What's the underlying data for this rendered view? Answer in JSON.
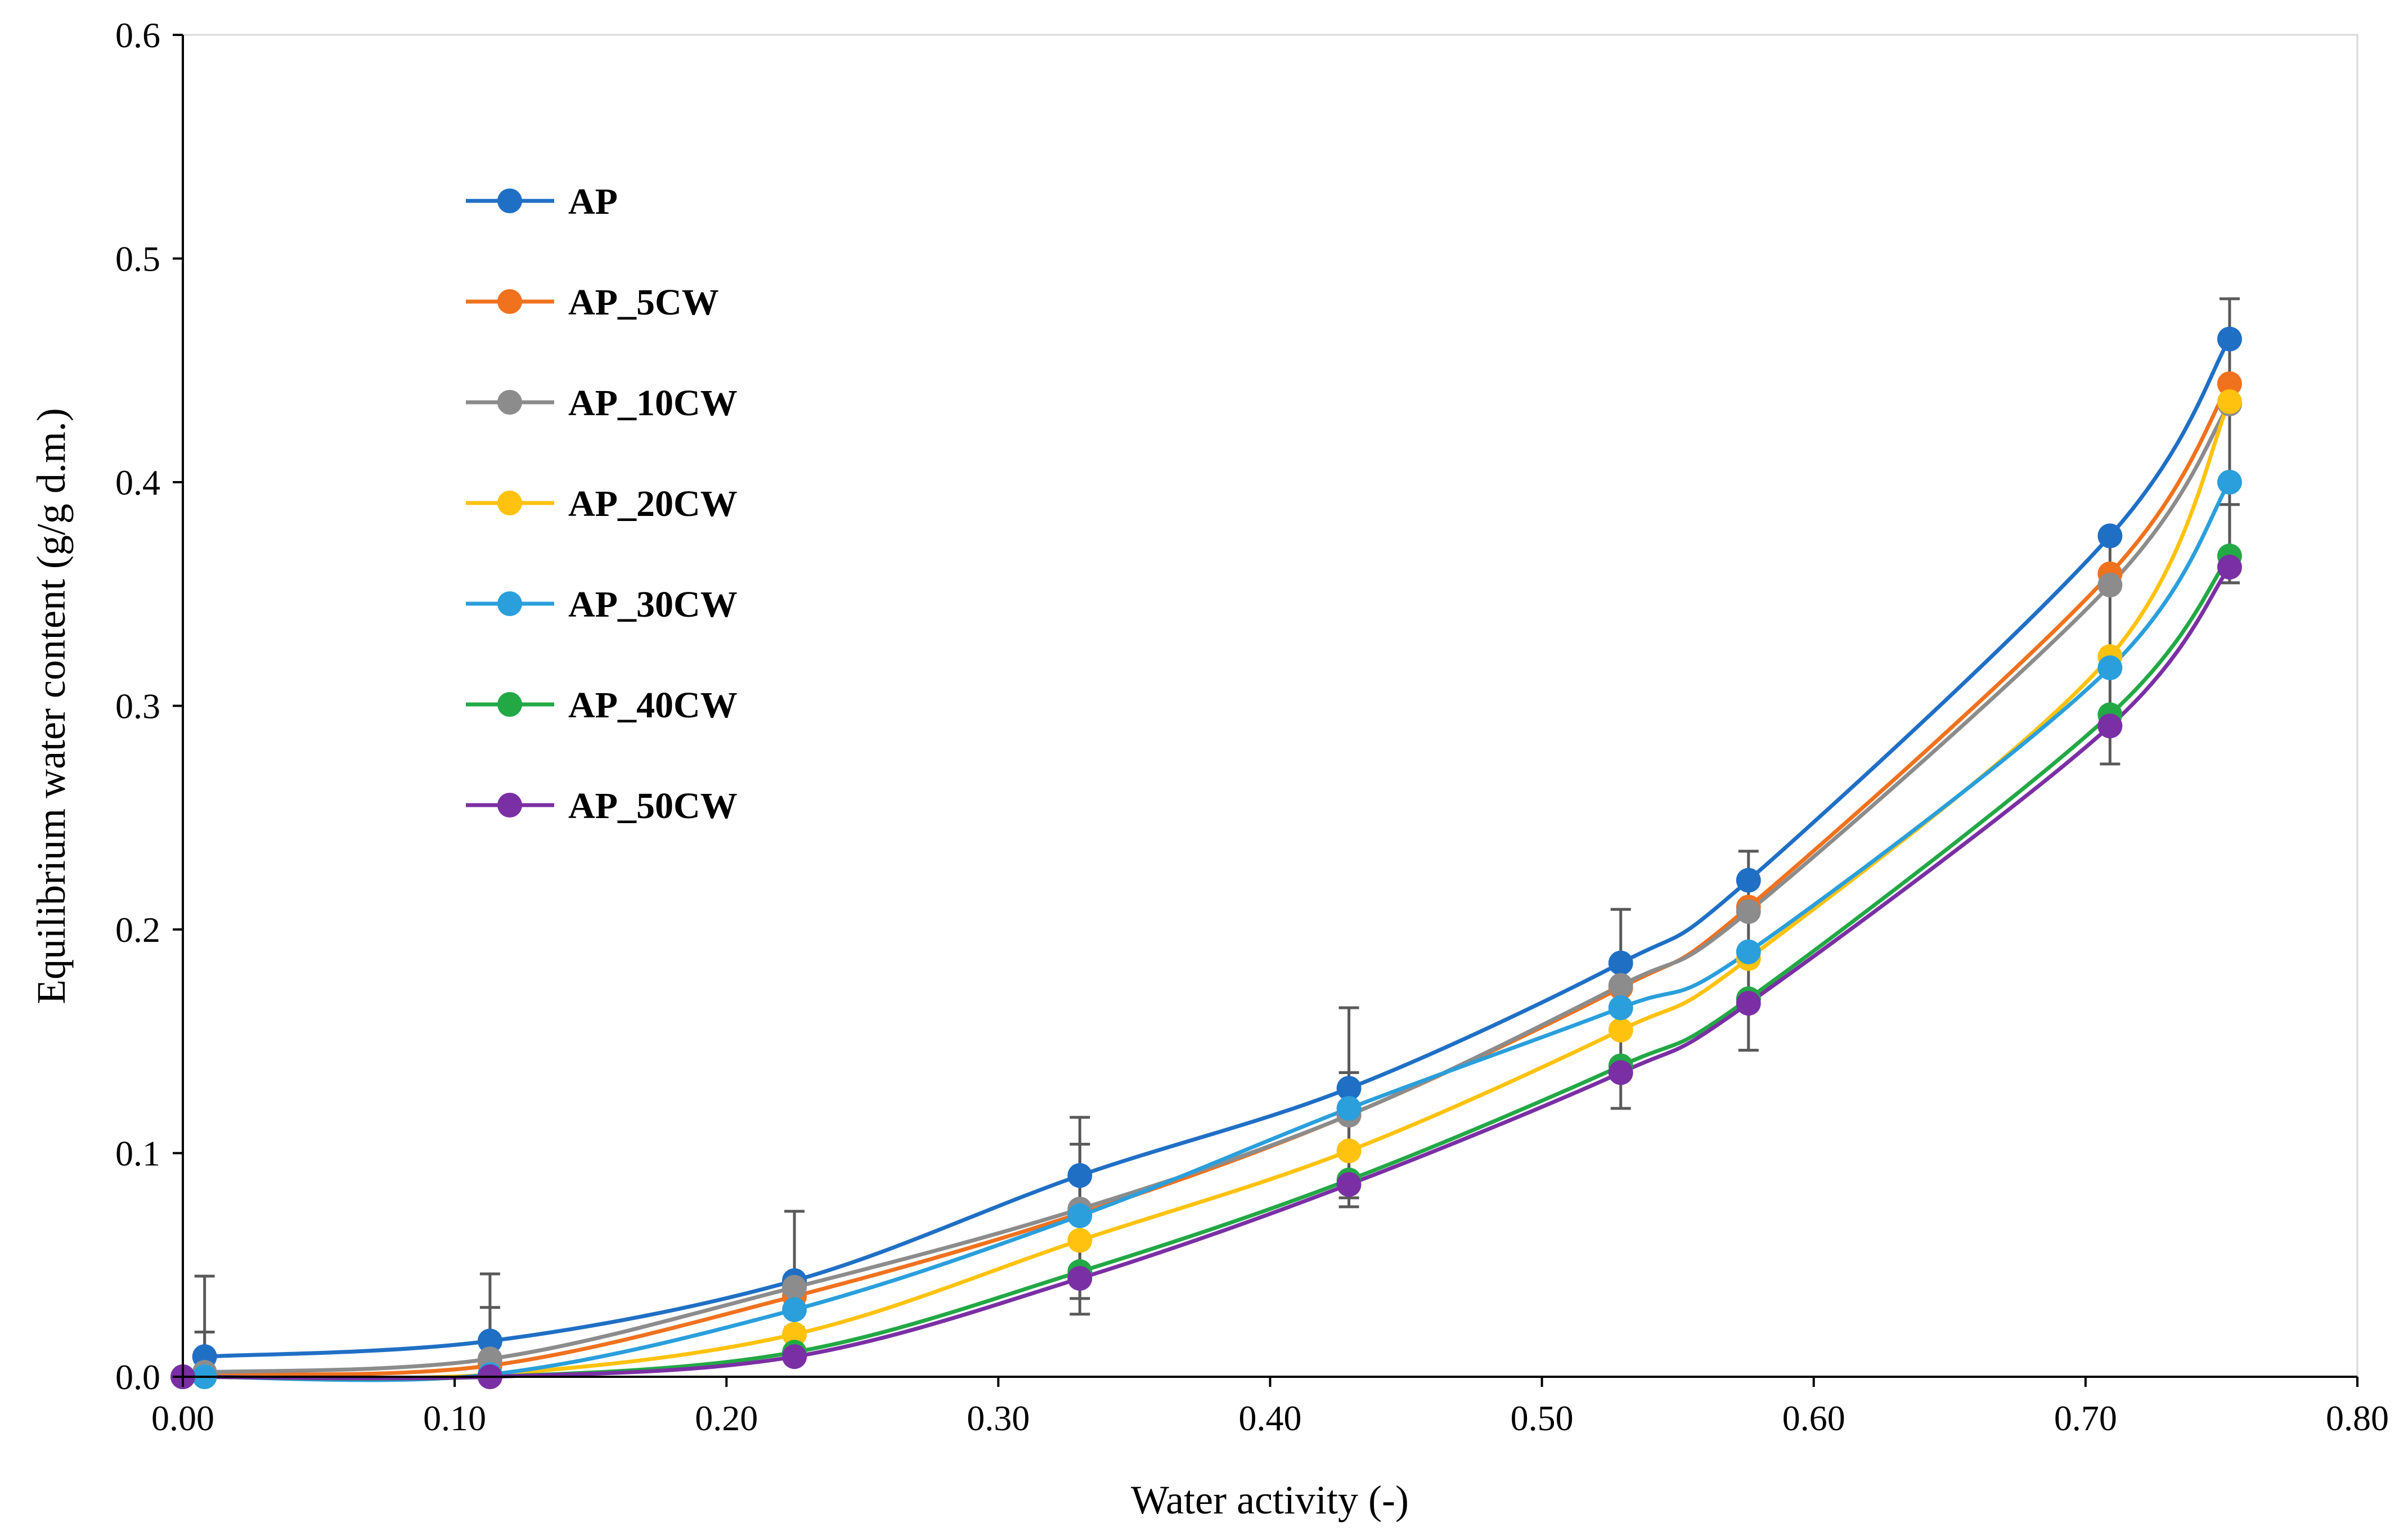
{
  "chart_data": {
    "type": "line",
    "title": "",
    "xlabel": "Water activity (-)",
    "ylabel": "Equilibrium water content  (g/g d.m.)",
    "xlim": [
      0.0,
      0.8
    ],
    "ylim": [
      0.0,
      0.6
    ],
    "x_ticks": [
      "0.00",
      "0.10",
      "0.20",
      "0.30",
      "0.40",
      "0.50",
      "0.60",
      "0.70",
      "0.80"
    ],
    "y_ticks": [
      "0.0",
      "0.1",
      "0.2",
      "0.3",
      "0.4",
      "0.5",
      "0.6"
    ],
    "grid": false,
    "legend_position": "top-left",
    "x": [
      0.0,
      0.113,
      0.225,
      0.33,
      0.429,
      0.529,
      0.576,
      0.709,
      0.753
    ],
    "series": [
      {
        "name": "AP",
        "color": "#1F6FC5",
        "x": [
          0.008,
          0.113,
          0.225,
          0.33,
          0.429,
          0.529,
          0.576,
          0.709,
          0.753
        ],
        "values": [
          0.009,
          0.016,
          0.043,
          0.09,
          0.129,
          0.185,
          0.222,
          0.376,
          0.464
        ]
      },
      {
        "name": "AP_5CW",
        "color": "#F0711E",
        "x": [
          0.008,
          0.113,
          0.225,
          0.33,
          0.429,
          0.529,
          0.576,
          0.709,
          0.753
        ],
        "values": [
          0.001,
          0.005,
          0.036,
          0.073,
          0.117,
          0.174,
          0.21,
          0.359,
          0.444
        ]
      },
      {
        "name": "AP_10CW",
        "color": "#8C8C8C",
        "x": [
          0.008,
          0.113,
          0.225,
          0.33,
          0.429,
          0.529,
          0.576,
          0.709,
          0.753
        ],
        "values": [
          0.002,
          0.008,
          0.04,
          0.075,
          0.117,
          0.175,
          0.208,
          0.354,
          0.435
        ]
      },
      {
        "name": "AP_20CW",
        "color": "#FFC20E",
        "x": [
          0.008,
          0.113,
          0.225,
          0.33,
          0.429,
          0.529,
          0.576,
          0.709,
          0.753
        ],
        "values": [
          0.0,
          0.001,
          0.019,
          0.061,
          0.101,
          0.155,
          0.187,
          0.322,
          0.436
        ]
      },
      {
        "name": "AP_30CW",
        "color": "#2A9FDC",
        "x": [
          0.008,
          0.113,
          0.225,
          0.33,
          0.429,
          0.529,
          0.576,
          0.709,
          0.753
        ],
        "values": [
          0.0,
          0.001,
          0.03,
          0.072,
          0.12,
          0.165,
          0.19,
          0.317,
          0.4
        ]
      },
      {
        "name": "AP_40CW",
        "color": "#22A845",
        "x": [
          0.0,
          0.113,
          0.225,
          0.33,
          0.429,
          0.529,
          0.576,
          0.709,
          0.753
        ],
        "values": [
          0.0,
          0.0,
          0.011,
          0.047,
          0.088,
          0.139,
          0.169,
          0.296,
          0.367
        ]
      },
      {
        "name": "AP_50CW",
        "color": "#7B2FA4",
        "x": [
          0.0,
          0.113,
          0.225,
          0.33,
          0.429,
          0.529,
          0.576,
          0.709,
          0.753
        ],
        "values": [
          0.0,
          0.0,
          0.009,
          0.044,
          0.086,
          0.136,
          0.167,
          0.291,
          0.362
        ]
      }
    ],
    "error_bars": [
      {
        "x": 0.008,
        "y": 0.009,
        "low": 0.0,
        "high": 0.045
      },
      {
        "x": 0.008,
        "y": 0.002,
        "low": 0.0,
        "high": 0.02
      },
      {
        "x": 0.113,
        "y": 0.016,
        "low": 0.0,
        "high": 0.046
      },
      {
        "x": 0.113,
        "y": 0.008,
        "low": 0.0,
        "high": 0.031
      },
      {
        "x": 0.225,
        "y": 0.043,
        "low": 0.022,
        "high": 0.074
      },
      {
        "x": 0.33,
        "y": 0.09,
        "low": 0.028,
        "high": 0.116
      },
      {
        "x": 0.33,
        "y": 0.073,
        "low": 0.035,
        "high": 0.104
      },
      {
        "x": 0.429,
        "y": 0.129,
        "low": 0.076,
        "high": 0.165
      },
      {
        "x": 0.429,
        "y": 0.117,
        "low": 0.08,
        "high": 0.136
      },
      {
        "x": 0.529,
        "y": 0.185,
        "low": 0.12,
        "high": 0.209
      },
      {
        "x": 0.576,
        "y": 0.222,
        "low": 0.146,
        "high": 0.235
      },
      {
        "x": 0.709,
        "y": 0.376,
        "low": 0.274,
        "high": 0.376
      },
      {
        "x": 0.753,
        "y": 0.464,
        "low": 0.355,
        "high": 0.482
      },
      {
        "x": 0.753,
        "y": 0.436,
        "low": 0.355,
        "high": 0.39
      }
    ]
  }
}
